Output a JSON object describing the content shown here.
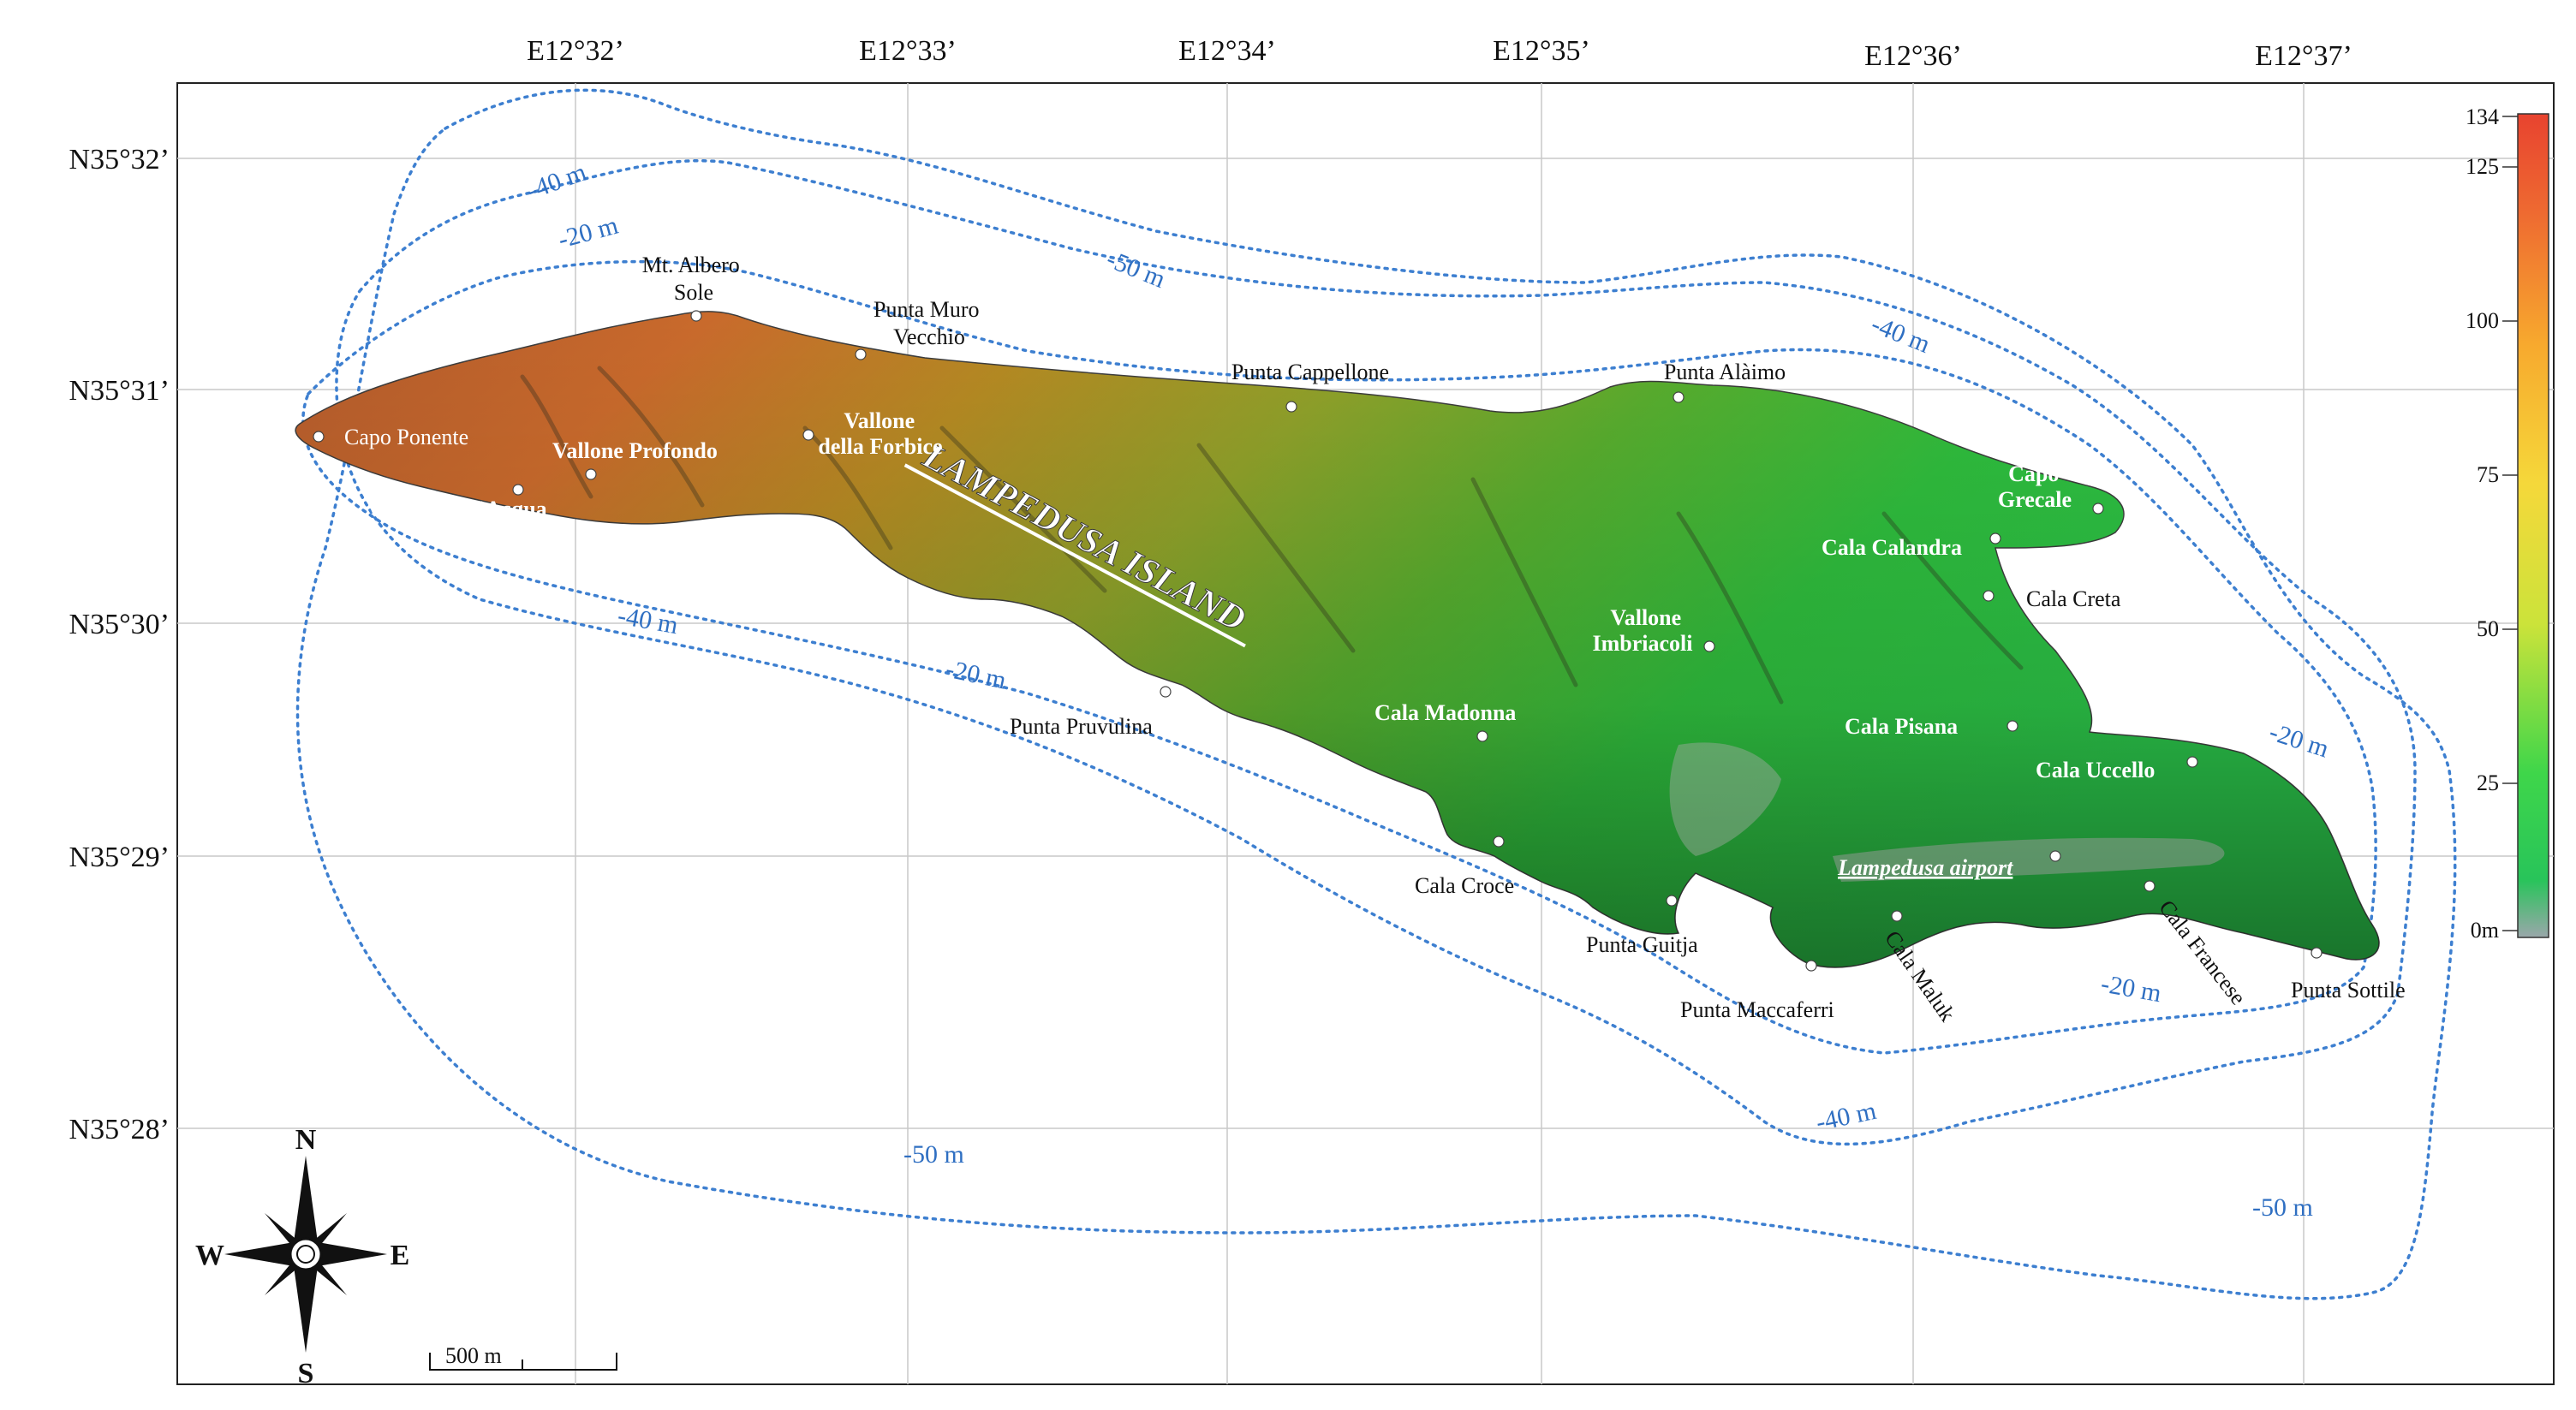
{
  "map": {
    "island_name": "LAMPEDUSA ISLAND",
    "longitude_labels": [
      "E12°32’",
      "E12°33’",
      "E12°34’",
      "E12°35’",
      "E12°36’",
      "E12°37’"
    ],
    "latitude_labels": [
      "N35°32’",
      "N35°31’",
      "N35°30’",
      "N35°29’",
      "N35°28’"
    ],
    "place_names": [
      {
        "id": "mt-albero-sole",
        "lines": [
          "Mt. Albero",
          "Sole"
        ],
        "style": "plain"
      },
      {
        "id": "punta-muro-vecchio",
        "lines": [
          "Punta Muro",
          "Vecchio"
        ],
        "style": "plain"
      },
      {
        "id": "punta-cappellone",
        "lines": [
          "Punta Cappellone"
        ],
        "style": "plain"
      },
      {
        "id": "punta-alaimo",
        "lines": [
          "Punta Alàimo"
        ],
        "style": "plain"
      },
      {
        "id": "capo-ponente",
        "lines": [
          "Capo Ponente"
        ],
        "style": "white"
      },
      {
        "id": "vallone-profondo",
        "lines": [
          "Vallone Profondo"
        ],
        "style": "white-bold"
      },
      {
        "id": "vallone-della-forbice",
        "lines": [
          "Vallone",
          "della Forbice"
        ],
        "style": "white-bold"
      },
      {
        "id": "vallone-dell-acqua",
        "lines": [
          "Vallone dell’Acqua"
        ],
        "style": "white-bold"
      },
      {
        "id": "capo-grecale",
        "lines": [
          "Capo",
          "Grecale"
        ],
        "style": "white-bold"
      },
      {
        "id": "cala-calandra",
        "lines": [
          "Cala Calandra"
        ],
        "style": "white-bold"
      },
      {
        "id": "cala-creta",
        "lines": [
          "Cala Creta"
        ],
        "style": "plain"
      },
      {
        "id": "vallone-imbriacoli",
        "lines": [
          "Vallone",
          "Imbriacoli"
        ],
        "style": "white-bold"
      },
      {
        "id": "cala-madonna",
        "lines": [
          "Cala  Madonna"
        ],
        "style": "white-bold"
      },
      {
        "id": "punta-pruvulina",
        "lines": [
          "Punta Pruvulina"
        ],
        "style": "plain"
      },
      {
        "id": "cala-pisana",
        "lines": [
          "Cala Pisana"
        ],
        "style": "white-bold"
      },
      {
        "id": "cala-uccello",
        "lines": [
          "Cala Uccello"
        ],
        "style": "white-bold"
      },
      {
        "id": "lampedusa-airport",
        "lines": [
          "Lampedusa airport"
        ],
        "style": "white-italic"
      },
      {
        "id": "cala-croce",
        "lines": [
          "Cala Croce"
        ],
        "style": "plain"
      },
      {
        "id": "punta-guitja",
        "lines": [
          "Punta Guitja"
        ],
        "style": "plain"
      },
      {
        "id": "punta-maccaferri",
        "lines": [
          "Punta Maccaferri"
        ],
        "style": "plain"
      },
      {
        "id": "cala-maluk",
        "lines": [
          "Cala Maluk"
        ],
        "style": "plain"
      },
      {
        "id": "cala-francese",
        "lines": [
          "Cala Francese"
        ],
        "style": "plain"
      },
      {
        "id": "punta-sottile",
        "lines": [
          "Punta Sottile"
        ],
        "style": "plain"
      }
    ],
    "depth_labels": [
      "-40 m",
      "-20 m",
      "-50 m",
      "-40 m",
      "-40 m",
      "-20 m",
      "-20 m",
      "-20 m",
      "-40 m",
      "-50 m",
      "-50 m"
    ],
    "elevation_scale": {
      "unit": "m",
      "ticks": [
        "134",
        "125",
        "100",
        "75",
        "50",
        "25",
        "0m"
      ],
      "values": [
        134,
        125,
        100,
        75,
        50,
        25,
        0
      ],
      "colors": [
        "#e8432f",
        "#ef7a32",
        "#f7b42e",
        "#f5e23a",
        "#b7e13a",
        "#35d24c",
        "#9aa7aa"
      ]
    },
    "compass": {
      "n": "N",
      "s": "S",
      "e": "E",
      "w": "W"
    },
    "scale_bar": {
      "label": "500 m"
    }
  }
}
